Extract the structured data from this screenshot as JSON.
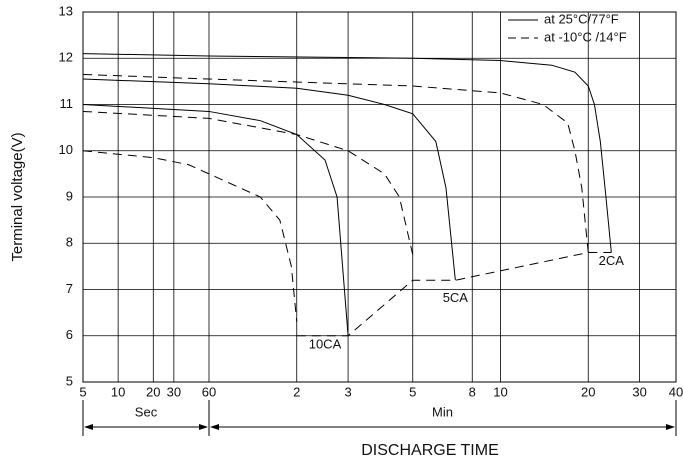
{
  "chart_data": {
    "type": "line",
    "ylabel": "Terminal voltage(V)",
    "xlabel": "DISCHARGE TIME",
    "xscale": "log",
    "xsegments": [
      {
        "label": "Sec",
        "xlim": [
          5,
          60
        ]
      },
      {
        "label": "Min",
        "xlim": [
          60,
          2400
        ]
      }
    ],
    "ylim": [
      5,
      13
    ],
    "yticks": [
      5,
      6,
      7,
      8,
      9,
      10,
      11,
      12,
      13
    ],
    "xticks": [
      5,
      10,
      20,
      30,
      60,
      {
        "value": 120,
        "label": "2"
      },
      {
        "value": 180,
        "label": "3"
      },
      {
        "value": 300,
        "label": "5"
      },
      {
        "value": 480,
        "label": "8"
      },
      {
        "value": 600,
        "label": "10"
      },
      {
        "value": 1200,
        "label": "20"
      },
      {
        "value": 1800,
        "label": "30"
      },
      {
        "value": 2400,
        "label": "40"
      }
    ],
    "grid": true,
    "legend": [
      {
        "label": "at 25°C/77°F",
        "dash": "solid"
      },
      {
        "label": "at -10°C /14°F",
        "dash": "dashed"
      }
    ],
    "legend_position": "upper right",
    "series": [
      {
        "dash": "solid",
        "color": "#000000",
        "x": [
          5,
          60,
          300,
          600,
          900,
          1080,
          1200,
          1260,
          1320,
          1380,
          1440
        ],
        "values": [
          12.1,
          12.05,
          12.0,
          11.95,
          11.85,
          11.7,
          11.4,
          11.0,
          10.2,
          9.0,
          7.8
        ]
      },
      {
        "dash": "dashed",
        "color": "#000000",
        "x": [
          5,
          60,
          300,
          600,
          840,
          1020,
          1080,
          1140,
          1200
        ],
        "values": [
          11.65,
          11.55,
          11.4,
          11.25,
          11.0,
          10.6,
          10.0,
          9.2,
          7.8
        ]
      },
      {
        "dash": "solid",
        "color": "#000000",
        "x": [
          5,
          60,
          120,
          180,
          240,
          300,
          360,
          390,
          420
        ],
        "values": [
          11.55,
          11.45,
          11.35,
          11.2,
          11.0,
          10.8,
          10.2,
          9.2,
          7.2
        ]
      },
      {
        "dash": "dashed",
        "color": "#000000",
        "x": [
          5,
          60,
          120,
          180,
          240,
          270,
          300
        ],
        "values": [
          10.85,
          10.7,
          10.35,
          10.0,
          9.5,
          9.0,
          7.75
        ]
      },
      {
        "dash": "solid",
        "color": "#000000",
        "x": [
          5,
          60,
          90,
          120,
          150,
          165,
          180
        ],
        "values": [
          11.0,
          10.85,
          10.65,
          10.35,
          9.8,
          9.0,
          6.0
        ]
      },
      {
        "dash": "dashed",
        "color": "#000000",
        "x": [
          5,
          20,
          40,
          60,
          90,
          105,
          115,
          120
        ],
        "values": [
          10.0,
          9.85,
          9.7,
          9.5,
          9.0,
          8.5,
          7.5,
          6.3
        ]
      },
      {
        "dash": "dashed",
        "color": "#000000",
        "x": [
          120,
          180,
          300,
          420,
          1200,
          1440
        ],
        "values": [
          6.0,
          6.0,
          7.2,
          7.2,
          7.8,
          7.8
        ]
      }
    ],
    "annotations": [
      {
        "text": "2CA",
        "x": 1440,
        "y": 7.6
      },
      {
        "text": "5CA",
        "x": 420,
        "y": 6.8
      },
      {
        "text": "10CA",
        "x": 150,
        "y": 5.8
      }
    ]
  }
}
